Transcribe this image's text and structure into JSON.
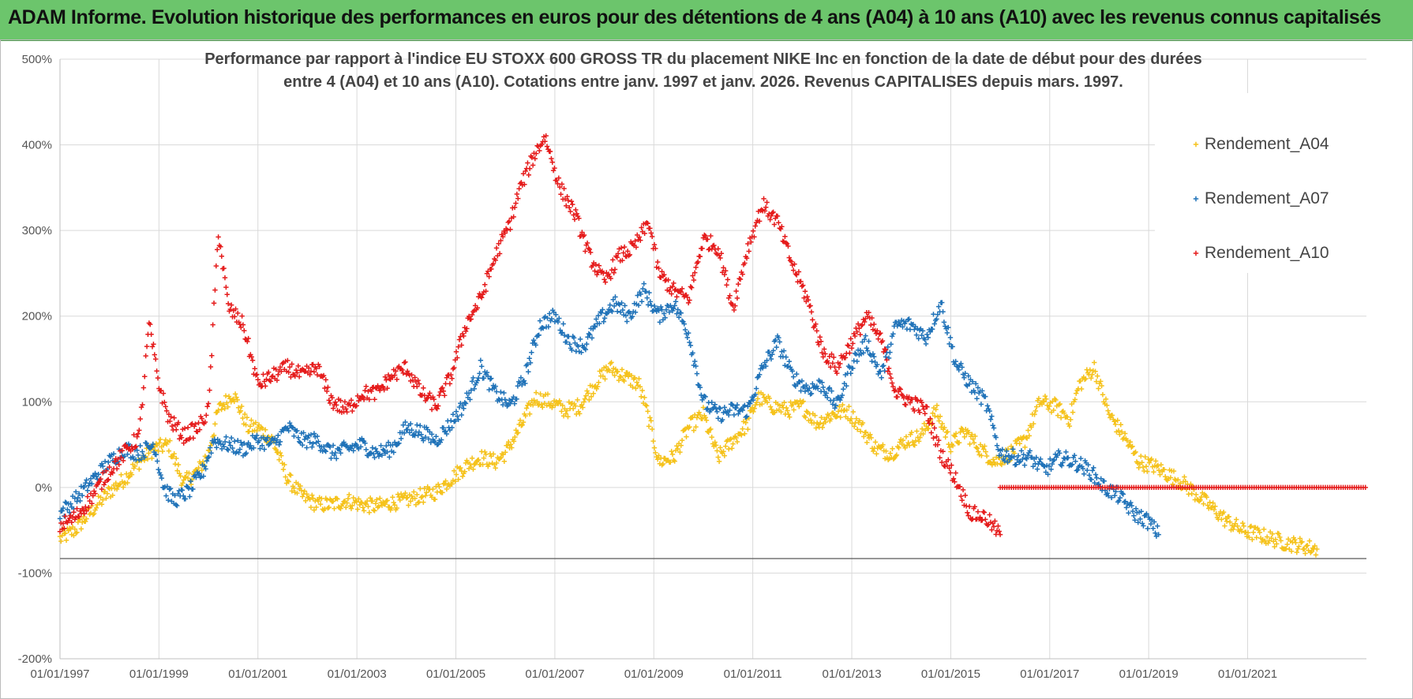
{
  "banner": {
    "title": "ADAM Informe. Evolution historique des performances en euros pour des détentions de 4 ans (A04) à 10 ans (A10) avec les revenus connus capitalisés"
  },
  "chart_data": {
    "type": "scatter",
    "title_line1": "Performance par rapport à l'indice EU STOXX 600 GROSS TR  du placement NIKE Inc en fonction de la date de début pour des durées",
    "title_line2": "entre 4 (A04) et 10 ans (A10). Cotations entre janv. 1997 et janv. 2026. Revenus CAPITALISES depuis mars. 1997.",
    "xlabel": "",
    "ylabel": "",
    "xlim": [
      1997.0,
      2023.4
    ],
    "ylim": [
      -200,
      500
    ],
    "y_ticks": [
      -200,
      -100,
      0,
      100,
      200,
      300,
      400,
      500
    ],
    "y_tick_labels": [
      "-200%",
      "-100%",
      "0%",
      "100%",
      "200%",
      "300%",
      "400%",
      "500%"
    ],
    "x_ticks": [
      1997,
      1999,
      2001,
      2003,
      2005,
      2007,
      2009,
      2011,
      2013,
      2015,
      2017,
      2019,
      2021
    ],
    "x_tick_labels": [
      "01/01/1997",
      "01/01/1999",
      "01/01/2001",
      "01/01/2003",
      "01/01/2005",
      "01/01/2007",
      "01/01/2009",
      "01/01/2011",
      "01/01/2013",
      "01/01/2015",
      "01/01/2017",
      "01/01/2019",
      "01/01/2021"
    ],
    "legend_position": "right",
    "series": [
      {
        "name": "Rendement_A04",
        "label": "Rendement_A04",
        "color": "#f5c21b",
        "x": [
          1997.0,
          1997.3,
          1997.6,
          1998.0,
          1998.3,
          1998.6,
          1998.9,
          1999.2,
          1999.5,
          1999.8,
          2000.0,
          2000.2,
          2000.5,
          2000.8,
          2001.0,
          2001.3,
          2001.6,
          2001.9,
          2002.2,
          2002.5,
          2002.8,
          2003.1,
          2003.4,
          2003.7,
          2004.0,
          2004.3,
          2004.6,
          2004.9,
          2005.2,
          2005.5,
          2005.8,
          2006.0,
          2006.3,
          2006.6,
          2006.9,
          2007.2,
          2007.5,
          2007.8,
          2008.1,
          2008.4,
          2008.7,
          2008.9,
          2009.1,
          2009.4,
          2009.7,
          2010.0,
          2010.3,
          2010.6,
          2010.9,
          2011.1,
          2011.4,
          2011.7,
          2012.0,
          2012.3,
          2012.6,
          2012.9,
          2013.2,
          2013.5,
          2013.8,
          2014.1,
          2014.4,
          2014.7,
          2015.0,
          2015.3,
          2015.6,
          2015.9,
          2016.2,
          2016.5,
          2016.8,
          2017.1,
          2017.4,
          2017.6,
          2017.9,
          2018.2,
          2018.5,
          2018.8,
          2019.1,
          2019.4,
          2019.7,
          2020.0,
          2020.3,
          2020.6,
          2020.9,
          2021.2,
          2021.5,
          2021.8,
          2022.1,
          2022.4
        ],
        "y": [
          -60,
          -50,
          -30,
          -5,
          10,
          30,
          45,
          50,
          5,
          20,
          40,
          90,
          110,
          70,
          70,
          55,
          10,
          -10,
          -20,
          -20,
          -15,
          -20,
          -22,
          -18,
          -15,
          -10,
          -5,
          10,
          25,
          35,
          30,
          40,
          70,
          105,
          100,
          90,
          95,
          120,
          140,
          130,
          120,
          80,
          30,
          35,
          70,
          85,
          35,
          55,
          75,
          105,
          95,
          90,
          95,
          75,
          85,
          90,
          70,
          45,
          40,
          55,
          60,
          90,
          50,
          65,
          45,
          30,
          40,
          55,
          100,
          95,
          80,
          120,
          140,
          85,
          60,
          30,
          25,
          15,
          5,
          -10,
          -25,
          -40,
          -50,
          -55,
          -60,
          -65,
          -68,
          -72
        ]
      },
      {
        "name": "Rendement_A07",
        "label": "Rendement_A07",
        "color": "#1f72b8",
        "x": [
          1997.0,
          1997.3,
          1997.6,
          1998.0,
          1998.3,
          1998.6,
          1998.9,
          1999.1,
          1999.3,
          1999.6,
          1999.9,
          2000.1,
          2000.4,
          2000.7,
          2001.0,
          2001.3,
          2001.6,
          2001.9,
          2002.2,
          2002.5,
          2002.8,
          2003.1,
          2003.4,
          2003.7,
          2004.0,
          2004.3,
          2004.6,
          2004.9,
          2005.2,
          2005.5,
          2005.8,
          2006.1,
          2006.4,
          2006.7,
          2007.0,
          2007.3,
          2007.6,
          2007.9,
          2008.2,
          2008.5,
          2008.8,
          2009.1,
          2009.4,
          2009.7,
          2010.0,
          2010.3,
          2010.6,
          2010.9,
          2011.2,
          2011.5,
          2011.8,
          2012.1,
          2012.4,
          2012.7,
          2013.0,
          2013.3,
          2013.6,
          2013.9,
          2014.2,
          2014.5,
          2014.8,
          2015.1,
          2015.4,
          2015.7,
          2016.0,
          2016.3,
          2016.6,
          2016.9,
          2017.2,
          2017.5,
          2017.8,
          2018.1,
          2018.4,
          2018.7,
          2019.0,
          2019.2
        ],
        "y": [
          -30,
          -15,
          5,
          30,
          45,
          40,
          50,
          0,
          -15,
          -5,
          20,
          55,
          50,
          45,
          55,
          50,
          70,
          55,
          55,
          40,
          45,
          50,
          40,
          45,
          70,
          65,
          55,
          75,
          100,
          140,
          110,
          95,
          130,
          190,
          200,
          170,
          165,
          195,
          215,
          200,
          230,
          200,
          215,
          180,
          100,
          85,
          90,
          90,
          140,
          170,
          130,
          115,
          120,
          95,
          145,
          170,
          130,
          190,
          190,
          175,
          215,
          145,
          120,
          100,
          40,
          35,
          35,
          20,
          35,
          30,
          20,
          0,
          -10,
          -30,
          -40,
          -55
        ]
      },
      {
        "name": "Rendement_A10",
        "label": "Rendement_A10",
        "color": "#e51b1b",
        "x": [
          1997.0,
          1997.3,
          1997.6,
          1998.0,
          1998.3,
          1998.6,
          1998.8,
          1999.0,
          1999.2,
          1999.5,
          1999.8,
          2000.0,
          2000.2,
          2000.4,
          2000.7,
          2001.0,
          2001.3,
          2001.6,
          2001.9,
          2002.2,
          2002.5,
          2002.8,
          2003.1,
          2003.4,
          2003.7,
          2004.0,
          2004.3,
          2004.6,
          2004.9,
          2005.2,
          2005.5,
          2005.8,
          2006.1,
          2006.3,
          2006.6,
          2006.8,
          2007.1,
          2007.4,
          2007.7,
          2008.0,
          2008.3,
          2008.6,
          2008.9,
          2009.1,
          2009.4,
          2009.7,
          2010.0,
          2010.3,
          2010.6,
          2010.9,
          2011.2,
          2011.5,
          2011.8,
          2012.1,
          2012.4,
          2012.7,
          2013.0,
          2013.3,
          2013.6,
          2013.9,
          2014.2,
          2014.5,
          2014.8,
          2015.1,
          2015.4,
          2015.7,
          2016.0
        ],
        "y": [
          -45,
          -35,
          -15,
          20,
          40,
          60,
          190,
          120,
          80,
          60,
          70,
          90,
          300,
          210,
          190,
          120,
          130,
          140,
          130,
          140,
          100,
          90,
          110,
          110,
          130,
          140,
          110,
          95,
          130,
          190,
          220,
          270,
          310,
          350,
          390,
          410,
          350,
          320,
          270,
          240,
          270,
          280,
          310,
          250,
          230,
          220,
          290,
          280,
          210,
          280,
          330,
          310,
          260,
          220,
          160,
          140,
          170,
          200,
          170,
          110,
          100,
          90,
          40,
          10,
          -30,
          -35,
          -55
        ]
      }
    ],
    "flat_segment": {
      "series": "Rendement_A10",
      "x": [
        2016.0,
        2023.4
      ],
      "y": 0
    }
  }
}
